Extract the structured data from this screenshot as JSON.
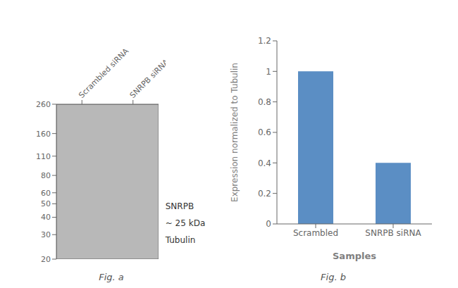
{
  "chart_data": [
    {
      "type": "blot",
      "categories": [
        "Scrambled siRNA",
        "SNRPB siRNA"
      ],
      "ylim": [
        20,
        260
      ],
      "yticks": [
        260,
        160,
        110,
        80,
        60,
        50,
        40,
        30,
        20
      ],
      "log": "y",
      "color": "#b8b8b8",
      "grid": false,
      "annotations": [
        "SNRPB",
        "~ 25 kDa",
        "Tubulin",
        "Fig. a"
      ]
    },
    {
      "type": "bar",
      "xlabel": "Samples",
      "ylabel": "Expression normalized to Tubulin",
      "categories": [
        "Scrambled",
        "SNRPB siRNA"
      ],
      "values": [
        1.0,
        0.4
      ],
      "color": "#5b8ec4",
      "ylim": [
        0,
        1.2
      ],
      "yticks": [
        0,
        0.2,
        0.4,
        0.6,
        0.8,
        1.0,
        1.2
      ],
      "grid": false,
      "annotations": [
        "Fig. b"
      ]
    }
  ]
}
